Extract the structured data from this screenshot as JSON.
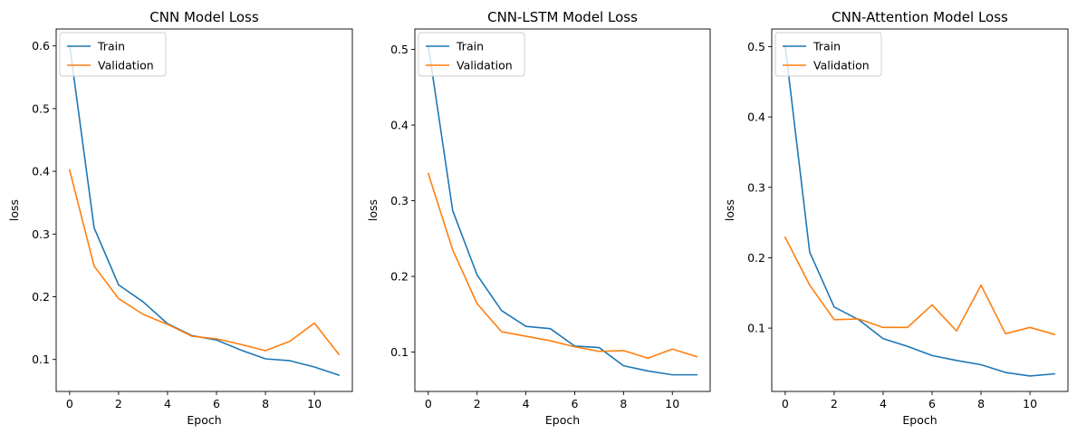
{
  "chart_data": [
    {
      "type": "line",
      "title": "CNN Model Loss",
      "xlabel": "Epoch",
      "ylabel": "loss",
      "xlim": [
        -0.55,
        11.55
      ],
      "ylim": [
        0.049,
        0.627
      ],
      "xticks": [
        0,
        2,
        4,
        6,
        8,
        10
      ],
      "yticks": [
        0.1,
        0.2,
        0.3,
        0.4,
        0.5,
        0.6
      ],
      "ytick_labels": [
        "0.1",
        "0.2",
        "0.3",
        "0.4",
        "0.5",
        "0.6"
      ],
      "legend_position": "upper-left",
      "grid": false,
      "x": [
        0,
        1,
        2,
        3,
        4,
        5,
        6,
        7,
        8,
        9,
        10,
        11
      ],
      "series": [
        {
          "name": "Train",
          "color": "#1f77b4",
          "values": [
            0.601,
            0.31,
            0.219,
            0.192,
            0.157,
            0.138,
            0.131,
            0.115,
            0.101,
            0.098,
            0.088,
            0.075
          ]
        },
        {
          "name": "Validation",
          "color": "#ff7f0e",
          "values": [
            0.402,
            0.249,
            0.197,
            0.172,
            0.156,
            0.137,
            0.133,
            0.124,
            0.114,
            0.129,
            0.158,
            0.108
          ]
        }
      ]
    },
    {
      "type": "line",
      "title": "CNN-LSTM Model Loss",
      "xlabel": "Epoch",
      "ylabel": "loss",
      "xlim": [
        -0.55,
        11.55
      ],
      "ylim": [
        0.048,
        0.527
      ],
      "xticks": [
        0,
        2,
        4,
        6,
        8,
        10
      ],
      "yticks": [
        0.1,
        0.2,
        0.3,
        0.4,
        0.5
      ],
      "ytick_labels": [
        "0.1",
        "0.2",
        "0.3",
        "0.4",
        "0.5"
      ],
      "legend_position": "upper-left",
      "grid": false,
      "x": [
        0,
        1,
        2,
        3,
        4,
        5,
        6,
        7,
        8,
        9,
        10,
        11
      ],
      "series": [
        {
          "name": "Train",
          "color": "#1f77b4",
          "values": [
            0.505,
            0.287,
            0.202,
            0.155,
            0.134,
            0.131,
            0.108,
            0.106,
            0.082,
            0.075,
            0.07,
            0.07
          ]
        },
        {
          "name": "Validation",
          "color": "#ff7f0e",
          "values": [
            0.336,
            0.235,
            0.164,
            0.127,
            0.121,
            0.115,
            0.107,
            0.101,
            0.102,
            0.092,
            0.104,
            0.094
          ]
        }
      ]
    },
    {
      "type": "line",
      "title": "CNN-Attention Model Loss",
      "xlabel": "Epoch",
      "ylabel": "loss",
      "xlim": [
        -0.55,
        11.55
      ],
      "ylim": [
        0.01,
        0.525
      ],
      "xticks": [
        0,
        2,
        4,
        6,
        8,
        10
      ],
      "yticks": [
        0.1,
        0.2,
        0.3,
        0.4,
        0.5
      ],
      "ytick_labels": [
        "0.1",
        "0.2",
        "0.3",
        "0.4",
        "0.5"
      ],
      "legend_position": "upper-left",
      "grid": false,
      "x": [
        0,
        1,
        2,
        3,
        4,
        5,
        6,
        7,
        8,
        9,
        10,
        11
      ],
      "series": [
        {
          "name": "Train",
          "color": "#1f77b4",
          "values": [
            0.501,
            0.208,
            0.13,
            0.112,
            0.085,
            0.074,
            0.061,
            0.054,
            0.048,
            0.037,
            0.032,
            0.035
          ]
        },
        {
          "name": "Validation",
          "color": "#ff7f0e",
          "values": [
            0.229,
            0.161,
            0.112,
            0.113,
            0.101,
            0.101,
            0.133,
            0.096,
            0.161,
            0.092,
            0.101,
            0.091
          ]
        }
      ]
    }
  ]
}
